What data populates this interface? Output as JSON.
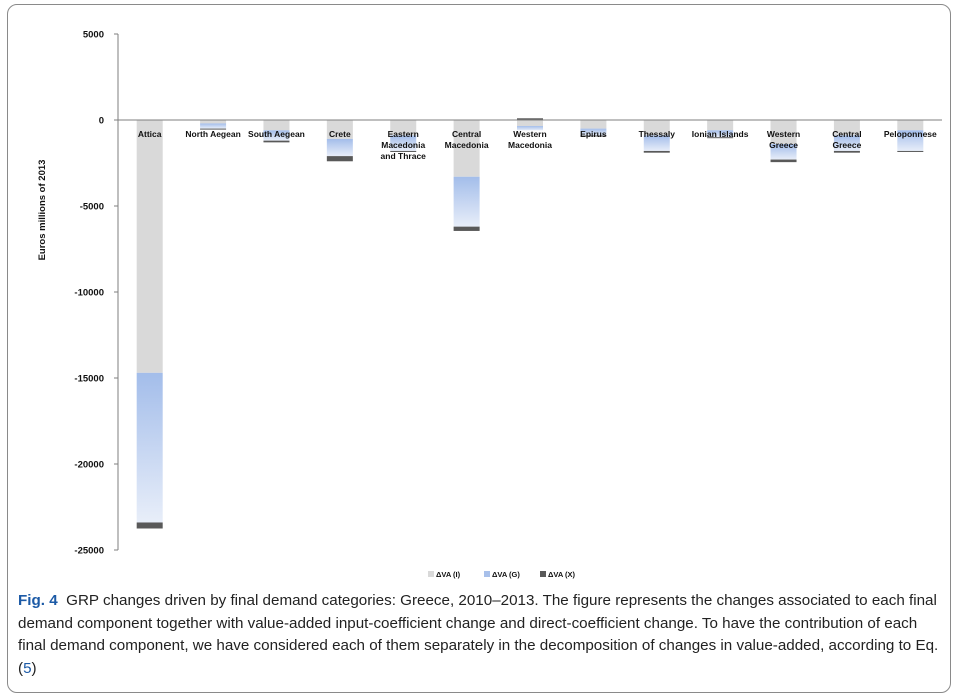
{
  "chart_data": {
    "type": "bar",
    "stacked": true,
    "ylabel": "Euros millions of 2013",
    "ylim": [
      -25000,
      5000
    ],
    "yticks": [
      5000,
      0,
      -5000,
      -10000,
      -15000,
      -20000,
      -25000
    ],
    "categories": [
      [
        "Attica"
      ],
      [
        "North Aegean"
      ],
      [
        "South Aegean"
      ],
      [
        "Crete"
      ],
      [
        "Eastern",
        "Macedonia",
        "and Thrace"
      ],
      [
        "Central",
        "Macedonia"
      ],
      [
        "Western",
        "Macedonia"
      ],
      [
        "Epirus"
      ],
      [
        "Thessaly"
      ],
      [
        "Ionian Islands"
      ],
      [
        "Western",
        "Greece"
      ],
      [
        "Central",
        "Greece"
      ],
      [
        "Peloponnese"
      ]
    ],
    "series": [
      {
        "name": "ΔVA (I)",
        "color": "#d9d9d9",
        "values": [
          -14700,
          -200,
          -600,
          -1100,
          -900,
          -3300,
          -350,
          -500,
          -900,
          -600,
          -1400,
          -900,
          -600
        ]
      },
      {
        "name": "ΔVA (G)",
        "color": "#a8c0ea",
        "values": [
          -8700,
          -300,
          -600,
          -1000,
          -900,
          -2900,
          -250,
          -400,
          -900,
          -400,
          -900,
          -900,
          -1200
        ]
      },
      {
        "name": "ΔVA (X)",
        "color": "#595959",
        "values": [
          -350,
          -50,
          -100,
          -300,
          -50,
          -250,
          100,
          -50,
          -100,
          -50,
          -150,
          -100,
          -50
        ]
      }
    ],
    "legend_position": "bottom-center",
    "grid": false
  },
  "caption": {
    "label": "Fig. 4",
    "text_before_ref": "GRP changes driven by final demand categories: Greece, 2010–2013. The figure represents the changes associated to each final demand component together with value-added input-coefficient change and direct-coefficient change. To have the contribution of each final demand component, we have considered each of them separately in the decomposition of changes in value-added, according to Eq. (",
    "ref": "5",
    "text_after_ref": ")"
  }
}
